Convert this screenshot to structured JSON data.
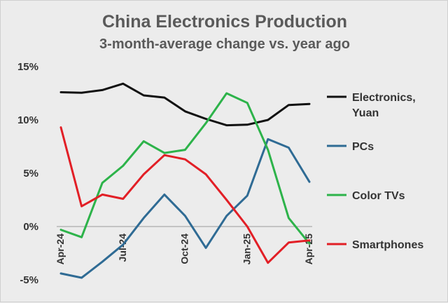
{
  "chart_data": {
    "type": "line",
    "title": "China Electronics Production",
    "subtitle": "3-month-average change vs. year ago",
    "xlabel": "",
    "ylabel": "",
    "ylim": [
      -5,
      15
    ],
    "yticks": [
      15,
      10,
      5,
      0,
      -5
    ],
    "ytick_labels": [
      "15%",
      "10%",
      "5%",
      "0%",
      "-5%"
    ],
    "x": [
      "Apr-24",
      "May-24",
      "Jun-24",
      "Jul-24",
      "Aug-24",
      "Sep-24",
      "Oct-24",
      "Nov-24",
      "Dec-24",
      "Jan-25",
      "Feb-25",
      "Mar-25",
      "Apr-25"
    ],
    "xtick_labels": [
      "Apr-24",
      "Jul-24",
      "Oct-24",
      "Jan-25",
      "Apr-25"
    ],
    "xtick_index": [
      0,
      3,
      6,
      9,
      12
    ],
    "grid": false,
    "legend_position": "right",
    "series": [
      {
        "name": "Electronics, Yuan",
        "color": "#111111",
        "values": [
          12.6,
          12.55,
          12.8,
          13.4,
          12.3,
          12.1,
          10.8,
          10.1,
          9.5,
          9.55,
          10.0,
          11.4,
          11.5
        ]
      },
      {
        "name": "PCs",
        "color": "#2f6b94",
        "values": [
          -4.4,
          -4.8,
          -3.3,
          -1.7,
          0.8,
          3.0,
          1.0,
          -2.0,
          1.0,
          2.9,
          8.2,
          7.4,
          4.2
        ]
      },
      {
        "name": "Color TVs",
        "color": "#2db34a",
        "values": [
          -0.3,
          -1.0,
          4.1,
          5.7,
          8.0,
          6.9,
          7.2,
          9.7,
          12.5,
          11.6,
          7.2,
          0.8,
          -1.6
        ]
      },
      {
        "name": "Smartphones",
        "color": "#e21f26",
        "values": [
          9.3,
          1.9,
          3.0,
          2.6,
          4.9,
          6.7,
          6.3,
          4.9,
          2.5,
          0.0,
          -3.4,
          -1.5,
          -1.3
        ]
      }
    ]
  }
}
